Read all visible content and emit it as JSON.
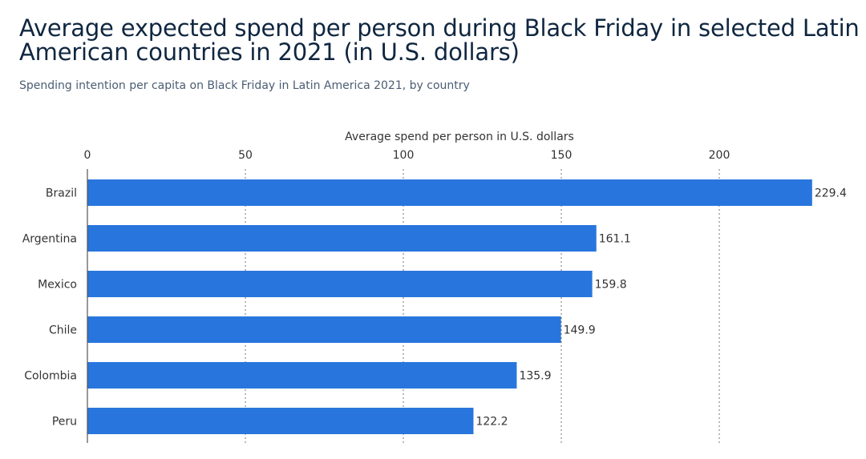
{
  "title": "Average expected spend per person during Black Friday in selected Latin American countries in 2021 (in U.S. dollars)",
  "subtitle": "Spending intention per capita on Black Friday in Latin America 2021, by country",
  "colors": {
    "bar": "#2876dd",
    "title": "#0f2640"
  },
  "chart_data": {
    "type": "bar",
    "orientation": "horizontal",
    "categories": [
      "Brazil",
      "Argentina",
      "Mexico",
      "Chile",
      "Colombia",
      "Peru"
    ],
    "values": [
      229.4,
      161.1,
      159.8,
      149.9,
      135.9,
      122.2
    ],
    "value_labels": [
      "229.4",
      "161.1",
      "159.8",
      "149.9",
      "135.9",
      "122.2"
    ],
    "xlabel": "Average spend per person in U.S. dollars",
    "ylabel": "",
    "xlim": [
      0,
      235
    ],
    "xticks": [
      0,
      50,
      100,
      150,
      200
    ],
    "xtick_labels": [
      "0",
      "50",
      "100",
      "150",
      "200"
    ],
    "axis_position": "top",
    "grid": "dotted vertical"
  }
}
